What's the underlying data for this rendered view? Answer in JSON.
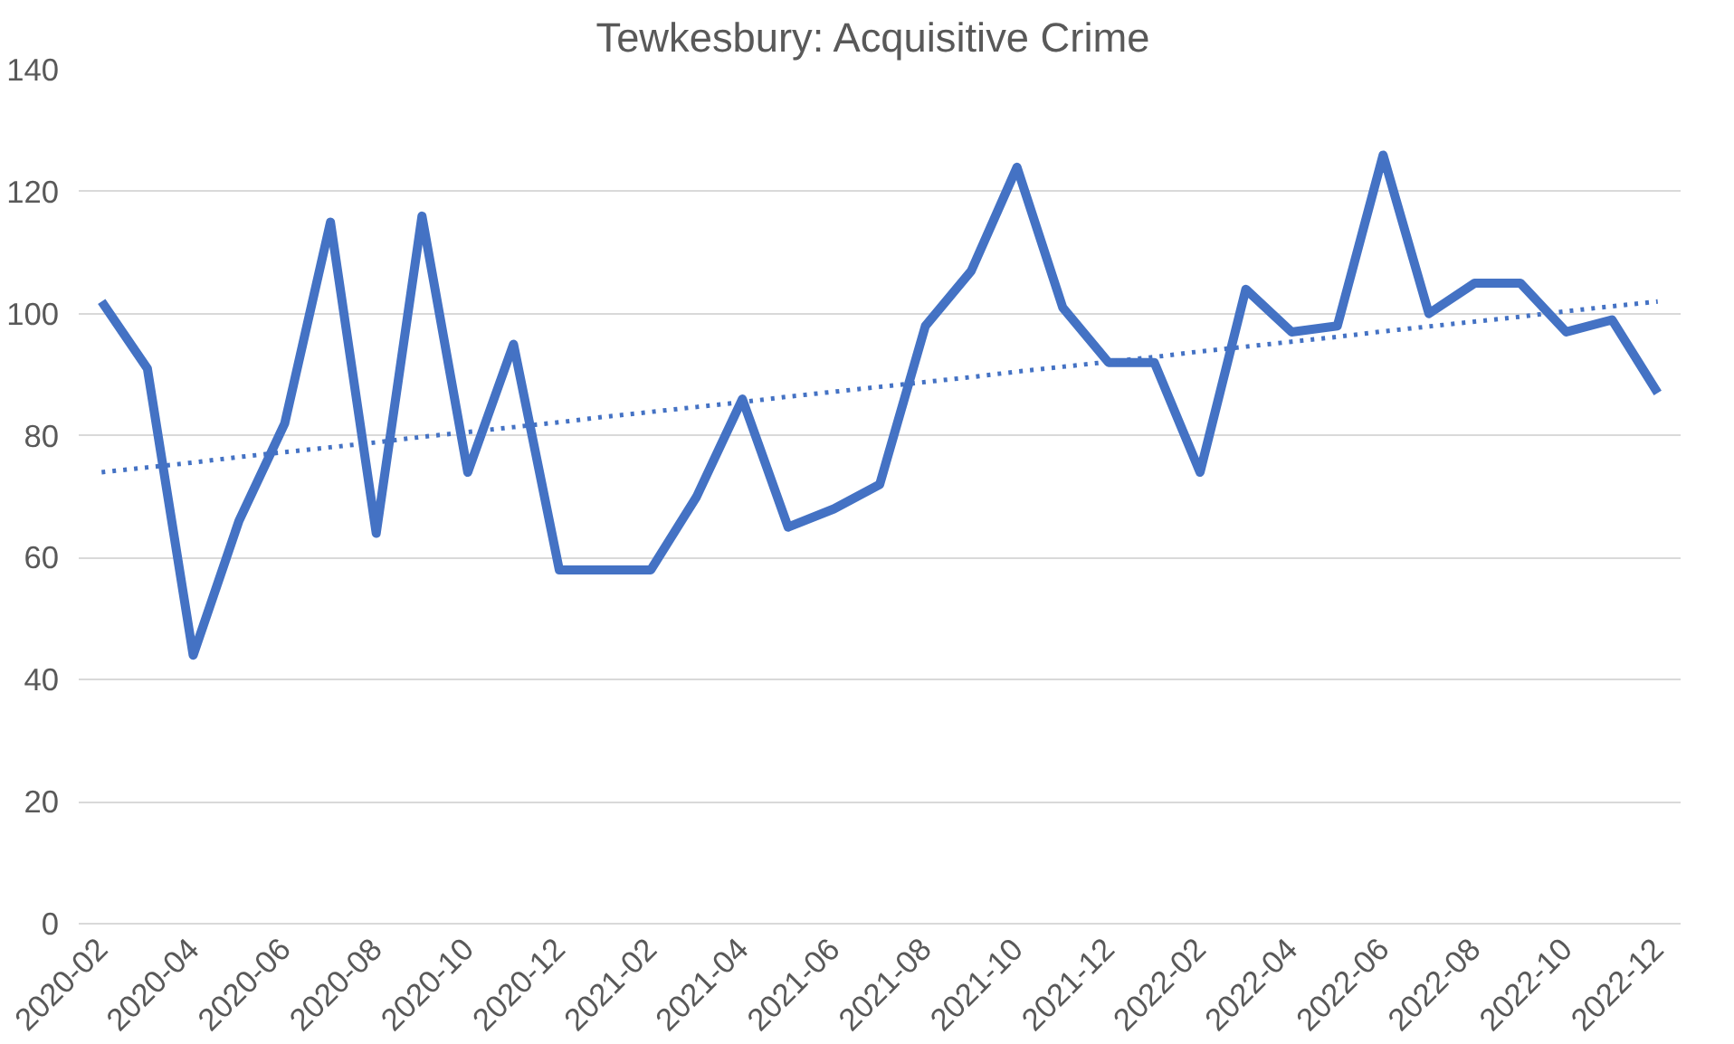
{
  "chart_data": {
    "type": "line",
    "title": "Tewkesbury:  Acquisitive Crime",
    "categories": [
      "2020-02",
      null,
      "2020-04",
      null,
      "2020-06",
      null,
      "2020-08",
      null,
      "2020-10",
      null,
      "2020-12",
      null,
      "2021-02",
      null,
      "2021-04",
      null,
      "2021-06",
      null,
      "2021-08",
      null,
      "2021-10",
      null,
      "2021-12",
      null,
      "2022-02",
      null,
      "2022-04",
      null,
      "2022-06",
      null,
      "2022-08",
      null,
      "2022-10",
      null,
      "2022-12"
    ],
    "series": [
      {
        "color": "#4472c4",
        "line_style": "solid",
        "values": [
          102,
          91,
          44,
          66,
          82,
          115,
          64,
          116,
          74,
          95,
          58,
          58,
          58,
          70,
          86,
          65,
          68,
          72,
          98,
          107,
          124,
          101,
          92,
          92,
          74,
          104,
          97,
          98,
          126,
          100,
          105,
          105,
          97,
          99,
          87
        ]
      },
      {
        "type": "line",
        "color": "#4472c4",
        "line_style": "dotted",
        "values": [
          74.0,
          74.8,
          75.6,
          76.5,
          77.3,
          78.1,
          78.9,
          79.8,
          80.6,
          81.4,
          82.2,
          83.1,
          83.9,
          84.7,
          85.5,
          86.4,
          87.2,
          88.0,
          88.8,
          89.6,
          90.5,
          91.3,
          92.1,
          92.9,
          93.8,
          94.6,
          95.4,
          96.2,
          97.1,
          97.9,
          98.7,
          99.5,
          100.4,
          101.2,
          102.0
        ]
      }
    ],
    "ylim": [
      0,
      140
    ],
    "yticks": [
      0,
      20,
      40,
      60,
      80,
      100,
      120,
      140
    ],
    "grid": "y"
  }
}
